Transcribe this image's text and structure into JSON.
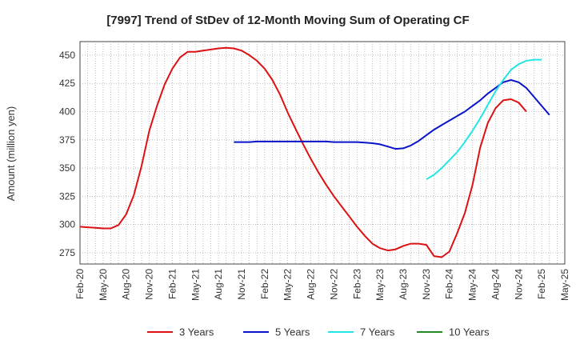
{
  "chart_data": {
    "type": "line",
    "title": "[7997]  Trend of StDev of 12-Month Moving Sum of Operating CF",
    "ylabel": "Amount (million yen)",
    "xlabel": "",
    "ylim": [
      265,
      462
    ],
    "yticks": [
      275,
      300,
      325,
      350,
      375,
      400,
      425,
      450
    ],
    "x_tick_labels": [
      "Feb-20",
      "May-20",
      "Aug-20",
      "Nov-20",
      "Feb-21",
      "May-21",
      "Aug-21",
      "Nov-21",
      "Feb-22",
      "May-22",
      "Aug-22",
      "Nov-22",
      "Feb-23",
      "May-23",
      "Aug-23",
      "Nov-23",
      "Feb-24",
      "May-24",
      "Aug-24",
      "Nov-24",
      "Feb-25",
      "May-25"
    ],
    "x_start": "Feb-20",
    "grid": true,
    "legend_position": "bottom",
    "series": [
      {
        "name": "3 Years",
        "color": "#dd1111",
        "start_label": "Feb-20",
        "values": [
          298,
          297.5,
          297,
          296.5,
          296.5,
          299.5,
          309,
          326,
          352,
          383,
          405,
          424,
          438,
          448,
          453,
          453,
          454,
          455,
          456,
          456.5,
          456,
          454,
          450,
          445,
          438,
          428,
          415,
          399,
          385,
          371,
          358,
          346,
          335,
          325,
          316,
          307,
          298,
          290,
          283,
          279,
          277,
          278,
          281,
          283,
          283,
          282,
          272,
          271,
          276,
          292,
          310,
          335,
          368,
          390,
          403,
          410,
          411,
          408,
          400
        ]
      },
      {
        "name": "5 Years",
        "color": "#0a14c8",
        "start_label": "Oct-21",
        "values": [
          373,
          373,
          373,
          373.5,
          373.5,
          373.5,
          373.5,
          373.5,
          373.5,
          373.5,
          373.5,
          373.5,
          373.5,
          373,
          373,
          373,
          373,
          372.5,
          372,
          371,
          369,
          367,
          367.5,
          370,
          374,
          379,
          384,
          388,
          392,
          396,
          400,
          405,
          410,
          416,
          421,
          426,
          428,
          426,
          421,
          413,
          405,
          397
        ]
      },
      {
        "name": "7 Years",
        "color": "#22e6e6",
        "start_label": "Nov-23",
        "values": [
          340,
          344,
          350,
          357,
          364,
          373,
          383,
          394,
          406,
          418,
          428,
          437,
          442,
          445,
          446,
          446
        ]
      },
      {
        "name": "10 Years",
        "color": "#228b22",
        "start_label": "",
        "values": []
      }
    ]
  }
}
